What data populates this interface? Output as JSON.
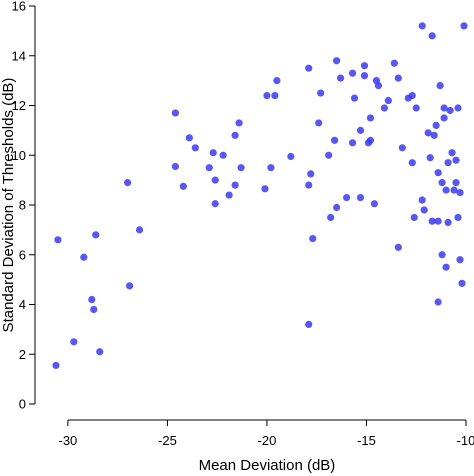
{
  "chart_data": {
    "type": "scatter",
    "xlabel": "Mean Deviation (dB)",
    "ylabel": "Standard Deviation of Thresholds (dB)",
    "xlim": [
      -31,
      -10
    ],
    "ylim": [
      0,
      16
    ],
    "x_ticks": [
      -30,
      -25,
      -20,
      -15,
      -10
    ],
    "y_ticks": [
      0,
      2,
      4,
      6,
      8,
      10,
      12,
      14,
      16
    ],
    "x_tick_labels": [
      "-30",
      "-25",
      "-20",
      "-15",
      "-10"
    ],
    "y_tick_labels": [
      "0",
      "2",
      "4",
      "6",
      "8",
      "10",
      "12",
      "14",
      "16"
    ],
    "point_color": "#3a3af0",
    "points": [
      [
        -30.6,
        1.55
      ],
      [
        -30.5,
        6.6
      ],
      [
        -29.7,
        2.5
      ],
      [
        -29.2,
        5.9
      ],
      [
        -28.8,
        4.2
      ],
      [
        -28.7,
        3.8
      ],
      [
        -28.6,
        6.8
      ],
      [
        -28.4,
        2.1
      ],
      [
        -27.0,
        8.9
      ],
      [
        -26.9,
        4.75
      ],
      [
        -26.4,
        7.0
      ],
      [
        -24.6,
        11.7
      ],
      [
        -24.6,
        9.55
      ],
      [
        -24.2,
        8.75
      ],
      [
        -23.9,
        10.7
      ],
      [
        -23.6,
        10.3
      ],
      [
        -22.9,
        9.5
      ],
      [
        -22.7,
        10.1
      ],
      [
        -22.6,
        8.05
      ],
      [
        -22.6,
        9.0
      ],
      [
        -22.2,
        10.0
      ],
      [
        -21.9,
        8.4
      ],
      [
        -21.6,
        8.8
      ],
      [
        -21.6,
        10.8
      ],
      [
        -21.4,
        11.3
      ],
      [
        -21.3,
        9.5
      ],
      [
        -20.1,
        8.65
      ],
      [
        -20.0,
        12.4
      ],
      [
        -19.8,
        9.5
      ],
      [
        -19.6,
        12.4
      ],
      [
        -19.5,
        13.0
      ],
      [
        -18.8,
        9.95
      ],
      [
        -17.9,
        13.5
      ],
      [
        -17.9,
        8.8
      ],
      [
        -17.9,
        3.2
      ],
      [
        -17.7,
        6.65
      ],
      [
        -17.8,
        9.25
      ],
      [
        -17.4,
        11.3
      ],
      [
        -17.3,
        12.5
      ],
      [
        -16.9,
        10.0
      ],
      [
        -16.8,
        7.5
      ],
      [
        -16.6,
        10.6
      ],
      [
        -16.5,
        13.8
      ],
      [
        -16.5,
        7.9
      ],
      [
        -16.3,
        13.1
      ],
      [
        -16.0,
        8.3
      ],
      [
        -15.7,
        13.3
      ],
      [
        -15.7,
        10.5
      ],
      [
        -15.6,
        12.3
      ],
      [
        -15.3,
        11.0
      ],
      [
        -15.3,
        8.3
      ],
      [
        -15.1,
        13.6
      ],
      [
        -15.1,
        13.2
      ],
      [
        -14.9,
        10.5
      ],
      [
        -14.8,
        10.6
      ],
      [
        -14.8,
        11.5
      ],
      [
        -14.6,
        8.05
      ],
      [
        -14.5,
        13.0
      ],
      [
        -14.4,
        12.8
      ],
      [
        -14.1,
        11.9
      ],
      [
        -13.9,
        12.2
      ],
      [
        -13.6,
        13.7
      ],
      [
        -13.4,
        13.1
      ],
      [
        -13.4,
        6.3
      ],
      [
        -13.2,
        10.3
      ],
      [
        -12.9,
        12.3
      ],
      [
        -12.7,
        12.4
      ],
      [
        -12.7,
        9.7
      ],
      [
        -12.6,
        7.5
      ],
      [
        -12.5,
        11.9
      ],
      [
        -12.2,
        8.2
      ],
      [
        -12.2,
        15.2
      ],
      [
        -12.1,
        7.8
      ],
      [
        -11.9,
        10.9
      ],
      [
        -11.8,
        9.9
      ],
      [
        -11.7,
        7.35
      ],
      [
        -11.7,
        14.8
      ],
      [
        -11.6,
        10.8
      ],
      [
        -11.5,
        11.2
      ],
      [
        -11.4,
        9.3
      ],
      [
        -11.4,
        7.35
      ],
      [
        -11.4,
        4.1
      ],
      [
        -11.3,
        12.8
      ],
      [
        -11.2,
        6.0
      ],
      [
        -11.2,
        8.9
      ],
      [
        -11.1,
        11.9
      ],
      [
        -11.1,
        11.5
      ],
      [
        -11.0,
        8.6
      ],
      [
        -11.0,
        5.5
      ],
      [
        -10.9,
        7.3
      ],
      [
        -10.9,
        9.7
      ],
      [
        -10.8,
        11.8
      ],
      [
        -10.7,
        10.1
      ],
      [
        -10.6,
        8.6
      ],
      [
        -10.5,
        9.8
      ],
      [
        -10.5,
        8.9
      ],
      [
        -10.4,
        7.5
      ],
      [
        -10.4,
        11.9
      ],
      [
        -10.3,
        5.8
      ],
      [
        -10.3,
        8.5
      ],
      [
        -10.2,
        4.85
      ],
      [
        -10.1,
        15.2
      ]
    ]
  }
}
